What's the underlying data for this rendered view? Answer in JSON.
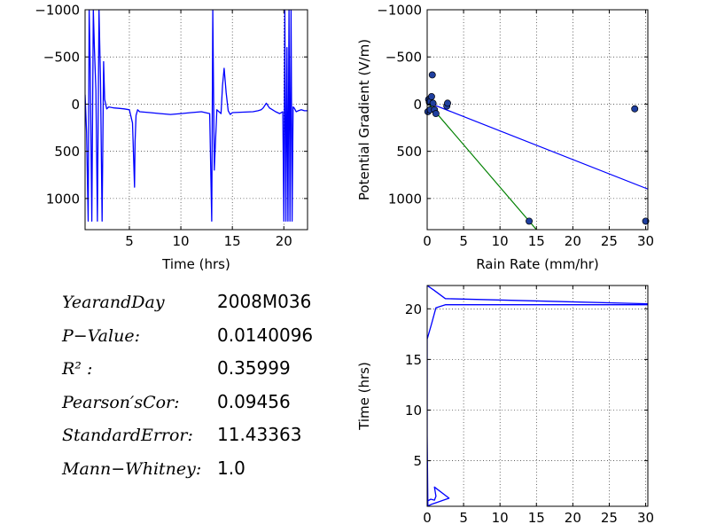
{
  "chart_data": [
    {
      "id": "timeseries",
      "type": "line",
      "xlabel": "Time (hrs)",
      "ylabel": "",
      "xlim": [
        0.7,
        22.3
      ],
      "ylim": [
        1330,
        -1000
      ],
      "y_inverted": true,
      "grid": true,
      "xticks": [
        5,
        10,
        15,
        20
      ],
      "yticks": [
        -1000,
        -500,
        0,
        500,
        1000
      ],
      "xtick_labels": [
        "5",
        "10",
        "15",
        "20"
      ],
      "ytick_labels": [
        "−1000",
        "−500",
        "0",
        "500",
        "1000"
      ],
      "series": [
        {
          "color": "#0000ff",
          "x": [
            0.7,
            0.85,
            1.0,
            1.1,
            1.2,
            1.35,
            1.5,
            1.6,
            1.75,
            1.9,
            2.05,
            2.2,
            2.35,
            2.5,
            2.6,
            2.8,
            3.0,
            3.5,
            4.0,
            4.5,
            5.0,
            5.3,
            5.5,
            5.55,
            5.65,
            5.8,
            6.0,
            7.0,
            8.0,
            9.0,
            10.0,
            11.0,
            12.0,
            12.8,
            13.0,
            13.1,
            13.25,
            13.35,
            13.5,
            13.7,
            13.9,
            14.05,
            14.2,
            14.4,
            14.6,
            14.8,
            15.0,
            16.0,
            17.0,
            17.5,
            17.8,
            18.0,
            18.3,
            18.6,
            18.9,
            19.2,
            19.6,
            19.9,
            20.0,
            20.1,
            20.2,
            20.3,
            20.4,
            20.5,
            20.6,
            20.7,
            20.8,
            20.9,
            21.0,
            21.1,
            21.2,
            21.4,
            21.7,
            22.0,
            22.3
          ],
          "y": [
            -100,
            300,
            1240,
            -1000,
            -400,
            1240,
            -1000,
            -600,
            -150,
            1240,
            -1000,
            -250,
            1240,
            -450,
            -50,
            50,
            30,
            40,
            45,
            50,
            60,
            200,
            880,
            400,
            120,
            60,
            80,
            90,
            100,
            110,
            100,
            90,
            80,
            100,
            1240,
            -1000,
            700,
            430,
            60,
            80,
            100,
            -200,
            -380,
            -120,
            70,
            110,
            90,
            85,
            80,
            70,
            60,
            40,
            -10,
            40,
            60,
            80,
            100,
            80,
            1240,
            -1000,
            1240,
            -600,
            1240,
            -1000,
            1240,
            -1000,
            1240,
            30,
            40,
            60,
            80,
            70,
            60,
            70,
            70
          ]
        }
      ]
    },
    {
      "id": "scatter",
      "type": "scatter",
      "xlabel": "Rain Rate (mm/hr)",
      "ylabel": "Potential Gradient (V/m)",
      "xlim": [
        0,
        30.3
      ],
      "ylim": [
        1330,
        -1000
      ],
      "y_inverted": true,
      "grid": true,
      "xticks": [
        0,
        5,
        10,
        15,
        20,
        25,
        30
      ],
      "yticks": [
        -1000,
        -500,
        0,
        500,
        1000
      ],
      "xtick_labels": [
        "0",
        "5",
        "10",
        "15",
        "20",
        "25",
        "30"
      ],
      "ytick_labels": [
        "−1000",
        "−500",
        "0",
        "500",
        "1000"
      ],
      "points": {
        "x": [
          0.1,
          0.2,
          0.3,
          0.4,
          0.6,
          0.7,
          0.8,
          1.0,
          1.2,
          2.7,
          2.8,
          14.0,
          28.5,
          30.0
        ],
        "y": [
          80,
          -50,
          -20,
          60,
          -80,
          -310,
          -10,
          60,
          100,
          20,
          -10,
          1240,
          50,
          1240
        ],
        "color": "#1f3f9f"
      },
      "fit_lines": [
        {
          "color": "#0000ff",
          "x": [
            0,
            30.3
          ],
          "y": [
            -20,
            900
          ]
        },
        {
          "color": "#008000",
          "x": [
            0,
            15.0
          ],
          "y": [
            -20,
            1330
          ]
        }
      ]
    },
    {
      "id": "rain-profile",
      "type": "line",
      "xlabel": "",
      "ylabel": "Time (hrs)",
      "xlim": [
        0,
        30.3
      ],
      "ylim": [
        0.5,
        22.3
      ],
      "grid": true,
      "xticks": [
        0,
        5,
        10,
        15,
        20,
        25,
        30
      ],
      "yticks": [
        5,
        10,
        15,
        20
      ],
      "xtick_labels": [
        "0",
        "5",
        "10",
        "15",
        "20",
        "25",
        "30"
      ],
      "ytick_labels": [
        "5",
        "10",
        "15",
        "20"
      ],
      "series": [
        {
          "color": "#0000ff",
          "x": [
            0,
            0,
            0.5,
            1.0,
            1.2,
            1.0,
            3.0,
            1.0,
            0.6,
            0.3,
            0.1,
            0,
            0,
            0.6,
            1.2,
            2.5,
            30.3,
            30.3,
            2.5,
            1.0,
            0,
            0
          ],
          "y": [
            0.5,
            1.0,
            1.2,
            1.1,
            1.5,
            2.4,
            1.3,
            0.8,
            0.7,
            0.6,
            0.55,
            7.5,
            17.0,
            18.5,
            20.1,
            20.4,
            20.4,
            20.5,
            21.0,
            21.8,
            22.3,
            22.3
          ]
        }
      ]
    }
  ],
  "stats": [
    {
      "label": "YearandDay",
      "value": "2008M036"
    },
    {
      "label": "P−Value:",
      "value": "0.0140096"
    },
    {
      "label": "R² :",
      "value": "0.35999"
    },
    {
      "label": "Pearson′sCor:",
      "value": "0.09456"
    },
    {
      "label": "StandardError:",
      "value": "11.43363"
    },
    {
      "label": "Mann−Whitney:",
      "value": "1.0"
    }
  ]
}
